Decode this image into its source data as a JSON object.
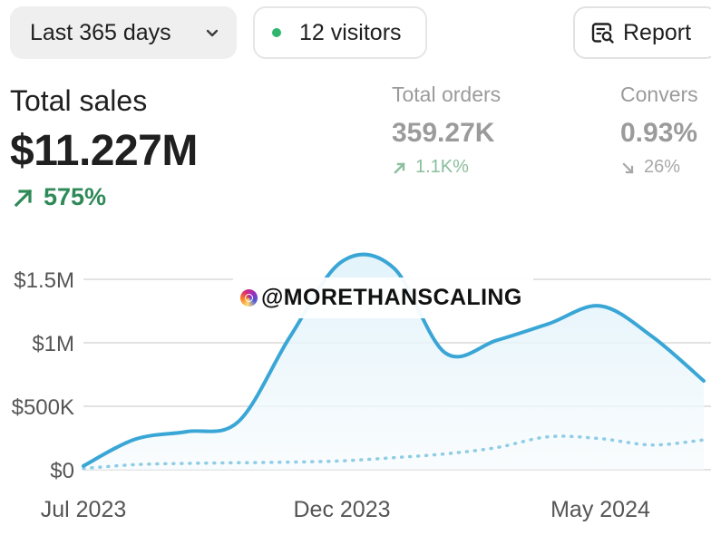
{
  "toolbar": {
    "date_range": "Last 365 days",
    "visitor_status": "12 visitors",
    "report_label": "Report"
  },
  "metrics": {
    "total_sales": {
      "title": "Total sales",
      "value": "$11.227M",
      "change": "575%"
    },
    "total_orders": {
      "title": "Total orders",
      "value": "359.27K",
      "change": "1.1K%"
    },
    "conversion": {
      "title": "Convers",
      "value": "0.93%",
      "change": "26%"
    }
  },
  "watermark": {
    "text": "@MORETHANSCALING"
  },
  "icons": {
    "date_select_chevron": "chevron-down-icon",
    "visitor_dot": "live-status-dot-icon",
    "report": "report-search-icon",
    "sales_change": "arrow-up-right-icon",
    "orders_change": "arrow-up-right-icon",
    "conversion_change": "arrow-down-right-icon",
    "watermark": "instagram-threads-icon"
  },
  "colors": {
    "accent": "#3aa6d6",
    "secondary_series": "#8fcde5",
    "positive": "#2f8a58",
    "muted_positive": "#8bbe9d",
    "muted_text": "#9b9b9b",
    "status_dot": "#30b56f"
  },
  "chart_data": {
    "type": "line",
    "title": "",
    "xlabel": "",
    "ylabel": "",
    "x": [
      "2023-07",
      "2023-08",
      "2023-09",
      "2023-10",
      "2023-11",
      "2023-12",
      "2024-01",
      "2024-02",
      "2024-03",
      "2024-04",
      "2024-05",
      "2024-06",
      "2024-07"
    ],
    "x_ticks": [
      "Jul 2023",
      "Dec 2023",
      "May 2024"
    ],
    "y_ticks": [
      "$0",
      "$500K",
      "$1M",
      "$1.5M"
    ],
    "ylim": [
      0,
      1800000
    ],
    "grid": true,
    "series": [
      {
        "style": "solid-area",
        "color": "#3aa6d6",
        "values": [
          30000,
          240000,
          300000,
          380000,
          1050000,
          1640000,
          1590000,
          920000,
          1020000,
          1150000,
          1290000,
          1050000,
          700000
        ]
      },
      {
        "style": "dotted",
        "color": "#8fcde5",
        "values": [
          10000,
          40000,
          50000,
          55000,
          60000,
          70000,
          95000,
          125000,
          175000,
          260000,
          245000,
          195000,
          235000
        ]
      }
    ]
  }
}
